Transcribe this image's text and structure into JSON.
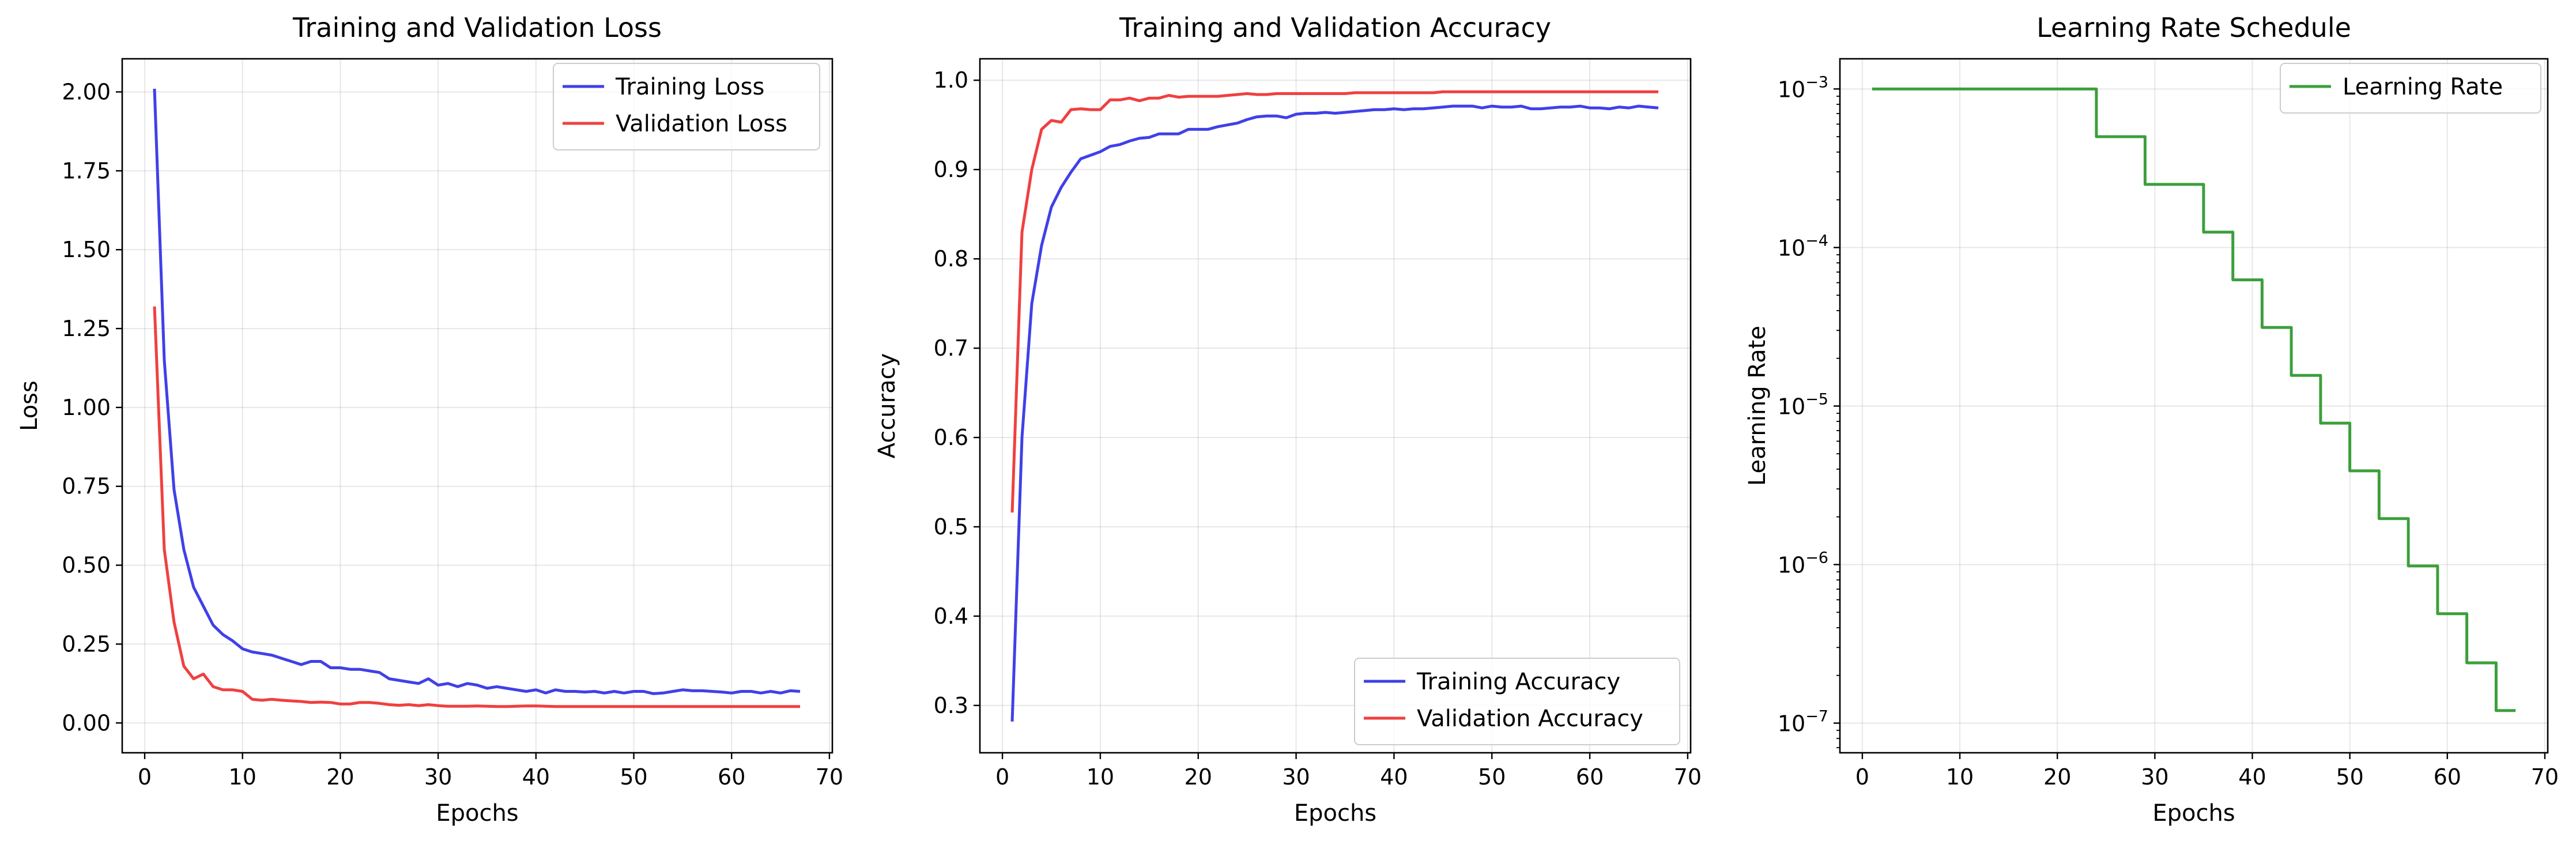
{
  "chart_data": [
    {
      "type": "line",
      "title": "Training and Validation Loss",
      "xlabel": "Epochs",
      "ylabel": "Loss",
      "xlim": [
        -2.3,
        70.3
      ],
      "ylim": [
        -0.0945,
        2.105
      ],
      "xticks": [
        0,
        10,
        20,
        30,
        40,
        50,
        60,
        70
      ],
      "yticks": [
        0.0,
        0.25,
        0.5,
        0.75,
        1.0,
        1.25,
        1.5,
        1.75,
        2.0
      ],
      "ytick_labels": [
        "0.00",
        "0.25",
        "0.50",
        "0.75",
        "1.00",
        "1.25",
        "1.50",
        "1.75",
        "2.00"
      ],
      "grid": true,
      "legend": "upper right",
      "x": [
        1,
        2,
        3,
        4,
        5,
        6,
        7,
        8,
        9,
        10,
        11,
        12,
        13,
        14,
        15,
        16,
        17,
        18,
        19,
        20,
        21,
        22,
        23,
        24,
        25,
        26,
        27,
        28,
        29,
        30,
        31,
        32,
        33,
        34,
        35,
        36,
        37,
        38,
        39,
        40,
        41,
        42,
        43,
        44,
        45,
        46,
        47,
        48,
        49,
        50,
        51,
        52,
        53,
        54,
        55,
        56,
        57,
        58,
        59,
        60,
        61,
        62,
        63,
        64,
        65,
        66,
        67
      ],
      "series": [
        {
          "name": "Training Loss",
          "color": "#4040e8",
          "values": [
            2.01,
            1.15,
            0.74,
            0.55,
            0.43,
            0.37,
            0.31,
            0.28,
            0.26,
            0.235,
            0.225,
            0.22,
            0.215,
            0.205,
            0.195,
            0.185,
            0.195,
            0.195,
            0.175,
            0.175,
            0.17,
            0.17,
            0.165,
            0.16,
            0.14,
            0.135,
            0.13,
            0.125,
            0.14,
            0.12,
            0.125,
            0.115,
            0.125,
            0.12,
            0.11,
            0.115,
            0.11,
            0.105,
            0.1,
            0.105,
            0.095,
            0.105,
            0.1,
            0.1,
            0.098,
            0.1,
            0.095,
            0.1,
            0.095,
            0.1,
            0.1,
            0.093,
            0.095,
            0.1,
            0.105,
            0.102,
            0.102,
            0.1,
            0.098,
            0.095,
            0.1,
            0.1,
            0.095,
            0.1,
            0.095,
            0.102,
            0.1
          ]
        },
        {
          "name": "Validation Loss",
          "color": "#f04040",
          "values": [
            1.32,
            0.55,
            0.32,
            0.18,
            0.14,
            0.155,
            0.115,
            0.105,
            0.105,
            0.1,
            0.075,
            0.072,
            0.075,
            0.072,
            0.07,
            0.068,
            0.065,
            0.066,
            0.065,
            0.06,
            0.06,
            0.065,
            0.065,
            0.062,
            0.058,
            0.056,
            0.058,
            0.055,
            0.058,
            0.055,
            0.053,
            0.053,
            0.053,
            0.054,
            0.053,
            0.052,
            0.052,
            0.053,
            0.054,
            0.054,
            0.053,
            0.052,
            0.052,
            0.052,
            0.052,
            0.052,
            0.052,
            0.052,
            0.052,
            0.052,
            0.052,
            0.052,
            0.052,
            0.052,
            0.052,
            0.052,
            0.052,
            0.052,
            0.052,
            0.052,
            0.052,
            0.052,
            0.052,
            0.052,
            0.052,
            0.052,
            0.052
          ]
        }
      ]
    },
    {
      "type": "line",
      "title": "Training and Validation Accuracy",
      "xlabel": "Epochs",
      "ylabel": "Accuracy",
      "xlim": [
        -2.3,
        70.3
      ],
      "ylim": [
        0.247,
        1.024
      ],
      "xticks": [
        0,
        10,
        20,
        30,
        40,
        50,
        60,
        70
      ],
      "yticks": [
        0.3,
        0.4,
        0.5,
        0.6,
        0.7,
        0.8,
        0.9,
        1.0
      ],
      "ytick_labels": [
        "0.3",
        "0.4",
        "0.5",
        "0.6",
        "0.7",
        "0.8",
        "0.9",
        "1.0"
      ],
      "grid": true,
      "legend": "lower right",
      "x": [
        1,
        2,
        3,
        4,
        5,
        6,
        7,
        8,
        9,
        10,
        11,
        12,
        13,
        14,
        15,
        16,
        17,
        18,
        19,
        20,
        21,
        22,
        23,
        24,
        25,
        26,
        27,
        28,
        29,
        30,
        31,
        32,
        33,
        34,
        35,
        36,
        37,
        38,
        39,
        40,
        41,
        42,
        43,
        44,
        45,
        46,
        47,
        48,
        49,
        50,
        51,
        52,
        53,
        54,
        55,
        56,
        57,
        58,
        59,
        60,
        61,
        62,
        63,
        64,
        65,
        66,
        67
      ],
      "series": [
        {
          "name": "Training Accuracy",
          "color": "#4040e8",
          "values": [
            0.282,
            0.6,
            0.75,
            0.815,
            0.858,
            0.88,
            0.897,
            0.912,
            0.916,
            0.92,
            0.926,
            0.928,
            0.932,
            0.935,
            0.936,
            0.94,
            0.94,
            0.94,
            0.945,
            0.945,
            0.945,
            0.948,
            0.95,
            0.952,
            0.956,
            0.959,
            0.96,
            0.96,
            0.958,
            0.962,
            0.963,
            0.963,
            0.964,
            0.963,
            0.964,
            0.965,
            0.966,
            0.967,
            0.967,
            0.968,
            0.967,
            0.968,
            0.968,
            0.969,
            0.97,
            0.971,
            0.971,
            0.971,
            0.969,
            0.971,
            0.97,
            0.97,
            0.971,
            0.968,
            0.968,
            0.969,
            0.97,
            0.97,
            0.971,
            0.969,
            0.969,
            0.968,
            0.97,
            0.969,
            0.971,
            0.97,
            0.969
          ]
        },
        {
          "name": "Validation Accuracy",
          "color": "#f04040",
          "values": [
            0.516,
            0.83,
            0.9,
            0.945,
            0.955,
            0.953,
            0.967,
            0.968,
            0.967,
            0.967,
            0.978,
            0.978,
            0.98,
            0.977,
            0.98,
            0.98,
            0.983,
            0.981,
            0.982,
            0.982,
            0.982,
            0.982,
            0.983,
            0.984,
            0.985,
            0.984,
            0.984,
            0.985,
            0.985,
            0.985,
            0.985,
            0.985,
            0.985,
            0.985,
            0.985,
            0.986,
            0.986,
            0.986,
            0.986,
            0.986,
            0.986,
            0.986,
            0.986,
            0.986,
            0.987,
            0.987,
            0.987,
            0.987,
            0.987,
            0.987,
            0.987,
            0.987,
            0.987,
            0.987,
            0.987,
            0.987,
            0.987,
            0.987,
            0.987,
            0.987,
            0.987,
            0.987,
            0.987,
            0.987,
            0.987,
            0.987,
            0.987
          ]
        }
      ]
    },
    {
      "type": "line",
      "title": "Learning Rate Schedule",
      "xlabel": "Epochs",
      "ylabel": "Learning Rate",
      "xlim": [
        -2.3,
        70.3
      ],
      "ylim": [
        6.5e-08,
        0.00155
      ],
      "yscale": "log",
      "xticks": [
        0,
        10,
        20,
        30,
        40,
        50,
        60,
        70
      ],
      "yticks": [
        1e-07,
        1e-06,
        1e-05,
        0.0001,
        0.001
      ],
      "ytick_exponents": [
        "−7",
        "−6",
        "−5",
        "−4",
        "−3"
      ],
      "grid": true,
      "legend": "upper right",
      "x": [
        1,
        2,
        3,
        4,
        5,
        6,
        7,
        8,
        9,
        10,
        11,
        12,
        13,
        14,
        15,
        16,
        17,
        18,
        19,
        20,
        21,
        22,
        23,
        24,
        25,
        26,
        27,
        28,
        29,
        30,
        31,
        32,
        33,
        34,
        35,
        36,
        37,
        38,
        39,
        40,
        41,
        42,
        43,
        44,
        45,
        46,
        47,
        48,
        49,
        50,
        51,
        52,
        53,
        54,
        55,
        56,
        57,
        58,
        59,
        60,
        61,
        62,
        63,
        64,
        65,
        66,
        67
      ],
      "series": [
        {
          "name": "Learning Rate",
          "color": "#3c9f3c",
          "values": [
            0.001,
            0.001,
            0.001,
            0.001,
            0.001,
            0.001,
            0.001,
            0.001,
            0.001,
            0.001,
            0.001,
            0.001,
            0.001,
            0.001,
            0.001,
            0.001,
            0.001,
            0.001,
            0.001,
            0.001,
            0.001,
            0.001,
            0.001,
            0.0005,
            0.0005,
            0.0005,
            0.0005,
            0.0005,
            0.00025,
            0.00025,
            0.00025,
            0.00025,
            0.00025,
            0.00025,
            0.000125,
            0.000125,
            0.000125,
            6.25e-05,
            6.25e-05,
            6.25e-05,
            3.13e-05,
            3.13e-05,
            3.13e-05,
            1.56e-05,
            1.56e-05,
            1.56e-05,
            7.8e-06,
            7.8e-06,
            7.8e-06,
            3.9e-06,
            3.9e-06,
            3.9e-06,
            1.95e-06,
            1.95e-06,
            1.95e-06,
            9.8e-07,
            9.8e-07,
            9.8e-07,
            4.9e-07,
            4.9e-07,
            4.9e-07,
            2.4e-07,
            2.4e-07,
            2.4e-07,
            1.2e-07,
            1.2e-07,
            1.2e-07
          ]
        }
      ]
    }
  ]
}
